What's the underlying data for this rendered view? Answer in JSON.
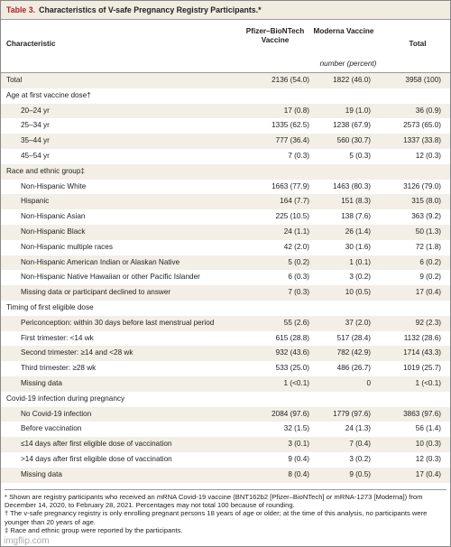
{
  "header": {
    "table_number": "Table 3.",
    "title": "Characteristics of V-safe Pregnancy Registry Participants.*"
  },
  "table": {
    "columns": [
      "Characteristic",
      "Pfizer–BioNTech Vaccine",
      "Moderna Vaccine",
      "Total"
    ],
    "unit": "number (percent)",
    "total": [
      "Total",
      "2136 (54.0)",
      "1822 (46.0)",
      "3958 (100)"
    ],
    "sections": [
      {
        "heading": "Age at first vaccine dose†",
        "rows": [
          [
            "20–24 yr",
            "17 (0.8)",
            "19 (1.0)",
            "36 (0.9)"
          ],
          [
            "25–34 yr",
            "1335 (62.5)",
            "1238 (67.9)",
            "2573 (65.0)"
          ],
          [
            "35–44 yr",
            "777 (36.4)",
            "560 (30.7)",
            "1337 (33.8)"
          ],
          [
            "45–54 yr",
            "7 (0.3)",
            "5 (0.3)",
            "12 (0.3)"
          ]
        ]
      },
      {
        "heading": "Race and ethnic group‡",
        "rows": [
          [
            "Non-Hispanic White",
            "1663 (77.9)",
            "1463 (80.3)",
            "3126 (79.0)"
          ],
          [
            "Hispanic",
            "164 (7.7)",
            "151 (8.3)",
            "315 (8.0)"
          ],
          [
            "Non-Hispanic Asian",
            "225 (10.5)",
            "138 (7.6)",
            "363 (9.2)"
          ],
          [
            "Non-Hispanic Black",
            "24 (1.1)",
            "26 (1.4)",
            "50 (1.3)"
          ],
          [
            "Non-Hispanic multiple races",
            "42 (2.0)",
            "30 (1.6)",
            "72 (1.8)"
          ],
          [
            "Non-Hispanic American Indian or Alaskan Native",
            "5 (0.2)",
            "1 (0.1)",
            "6 (0.2)"
          ],
          [
            "Non-Hispanic Native Hawaiian or other Pacific Islander",
            "6 (0.3)",
            "3 (0.2)",
            "9 (0.2)"
          ],
          [
            "Missing data or participant declined to answer",
            "7 (0.3)",
            "10 (0.5)",
            "17 (0.4)"
          ]
        ]
      },
      {
        "heading": "Timing of first eligible dose",
        "rows": [
          [
            "Periconception: within 30 days before last menstrual period",
            "55 (2.6)",
            "37 (2.0)",
            "92 (2.3)"
          ],
          [
            "First trimester: <14 wk",
            "615 (28.8)",
            "517 (28.4)",
            "1132 (28.6)"
          ],
          [
            "Second trimester: ≥14 and <28 wk",
            "932 (43.6)",
            "782 (42.9)",
            "1714 (43.3)"
          ],
          [
            "Third trimester: ≥28 wk",
            "533 (25.0)",
            "486 (26.7)",
            "1019 (25.7)"
          ],
          [
            "Missing data",
            "1 (<0.1)",
            "0",
            "1 (<0.1)"
          ]
        ]
      },
      {
        "heading": "Covid-19 infection during pregnancy",
        "rows": [
          [
            "No Covid-19 infection",
            "2084 (97.6)",
            "1779 (97.6)",
            "3863 (97.6)"
          ],
          [
            "Before vaccination",
            "32 (1.5)",
            "24 (1.3)",
            "56 (1.4)"
          ],
          [
            "≤14 days after first eligible dose of vaccination",
            "3 (0.1)",
            "7 (0.4)",
            "10 (0.3)"
          ],
          [
            ">14 days after first eligible dose of vaccination",
            "9 (0.4)",
            "3 (0.2)",
            "12 (0.3)"
          ],
          [
            "Missing data",
            "8 (0.4)",
            "9 (0.5)",
            "17 (0.4)"
          ]
        ]
      }
    ]
  },
  "footnotes": [
    "* Shown are registry participants who received an mRNA Covid-19 vaccine (BNT162b2 [Pfizer–BioNTech] or mRNA-1273 [Moderna]) from December 14, 2020, to February 28, 2021. Percentages may not total 100 because of rounding.",
    "† The v-safe pregnancy registry is only enrolling pregnant persons 18 years of age or older; at the time of this analysis, no participants were younger than 20 years of age.",
    "‡ Race and ethnic group were reported by the participants."
  ],
  "watermark": "imgflip.com"
}
